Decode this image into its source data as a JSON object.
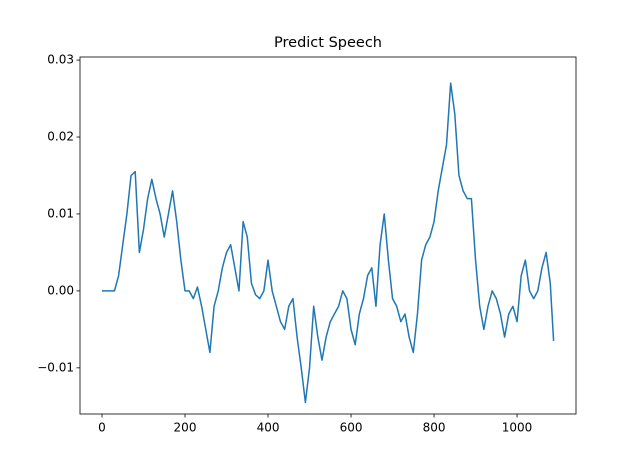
{
  "chart_data": {
    "type": "line",
    "title": "Predict Speech",
    "x": [
      0,
      10,
      20,
      30,
      40,
      50,
      60,
      70,
      80,
      90,
      100,
      110,
      120,
      130,
      140,
      150,
      160,
      170,
      180,
      190,
      200,
      210,
      220,
      230,
      240,
      250,
      260,
      270,
      280,
      290,
      300,
      310,
      320,
      330,
      340,
      350,
      360,
      370,
      380,
      390,
      400,
      410,
      420,
      430,
      440,
      450,
      460,
      470,
      480,
      490,
      500,
      510,
      520,
      530,
      540,
      550,
      560,
      570,
      580,
      590,
      600,
      610,
      620,
      630,
      640,
      650,
      660,
      670,
      680,
      690,
      700,
      710,
      720,
      730,
      740,
      750,
      760,
      770,
      780,
      790,
      800,
      810,
      820,
      830,
      840,
      850,
      860,
      870,
      880,
      890,
      900,
      910,
      920,
      930,
      940,
      950,
      960,
      970,
      980,
      990,
      1000,
      1010,
      1020,
      1030,
      1040,
      1050,
      1060,
      1070,
      1080,
      1088
    ],
    "series": [
      {
        "color": "#1f77b4",
        "values": [
          0,
          0,
          0,
          0,
          0.002,
          0.006,
          0.01,
          0.015,
          0.0155,
          0.005,
          0.008,
          0.012,
          0.0145,
          0.012,
          0.01,
          0.007,
          0.01,
          0.013,
          0.009,
          0.004,
          0,
          0,
          -0.001,
          0.0005,
          -0.002,
          -0.005,
          -0.008,
          -0.002,
          0,
          0.003,
          0.005,
          0.006,
          0.003,
          0,
          0.009,
          0.007,
          0.001,
          -0.0005,
          -0.001,
          0,
          0.004,
          0,
          -0.002,
          -0.004,
          -0.005,
          -0.002,
          -0.001,
          -0.006,
          -0.01,
          -0.0145,
          -0.01,
          -0.002,
          -0.006,
          -0.009,
          -0.006,
          -0.004,
          -0.003,
          -0.002,
          0,
          -0.001,
          -0.005,
          -0.007,
          -0.003,
          -0.001,
          0.002,
          0.003,
          -0.002,
          0.006,
          0.01,
          0.004,
          -0.001,
          -0.002,
          -0.004,
          -0.003,
          -0.006,
          -0.008,
          -0.003,
          0.004,
          0.006,
          0.007,
          0.009,
          0.013,
          0.016,
          0.019,
          0.027,
          0.023,
          0.015,
          0.013,
          0.012,
          0.012,
          0.004,
          -0.002,
          -0.005,
          -0.002,
          0,
          -0.001,
          -0.003,
          -0.006,
          -0.003,
          -0.002,
          -0.004,
          0.002,
          0.004,
          0,
          -0.001,
          0,
          0.003,
          0.005,
          0.001,
          -0.0065
        ]
      }
    ],
    "xlim": [
      -53,
      1142
    ],
    "ylim": [
      -0.016,
      0.0304
    ],
    "xticks": [
      0,
      200,
      400,
      600,
      800,
      1000
    ],
    "yticks": [
      {
        "value": -0.01,
        "label": "−0.01"
      },
      {
        "value": 0,
        "label": "0.00"
      },
      0.01,
      0.02,
      0.03
    ]
  }
}
